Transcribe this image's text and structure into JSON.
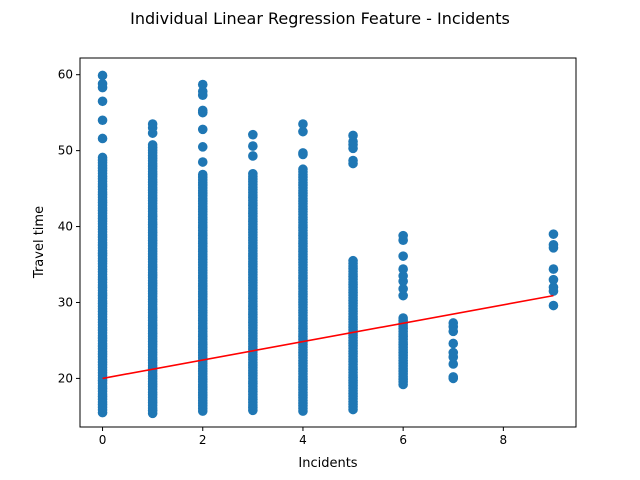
{
  "chart_data": {
    "type": "scatter",
    "title": "Individual Linear Regression Feature - Incidents",
    "xlabel": "Incidents",
    "ylabel": "Travel time",
    "xlim": [
      -0.45,
      9.45
    ],
    "ylim": [
      13.6,
      62.2
    ],
    "xticks": [
      0,
      2,
      4,
      6,
      8
    ],
    "yticks": [
      20,
      30,
      40,
      50,
      60
    ],
    "grid": false,
    "colors": {
      "points": "#1f77b4",
      "regression": "#ff0000"
    },
    "scatter_columns": [
      {
        "x": 0,
        "y_min": 15.5,
        "y_max": 49.3,
        "outliers": [
          51.6,
          54.0,
          56.5,
          58.3,
          58.8,
          59.9
        ]
      },
      {
        "x": 1,
        "y_min": 15.4,
        "y_max": 50.8,
        "outliers": [
          52.3,
          53.0,
          53.5
        ]
      },
      {
        "x": 2,
        "y_min": 15.7,
        "y_max": 47.0,
        "outliers": [
          48.5,
          50.5,
          52.8,
          55.0,
          55.3,
          57.3,
          57.8,
          58.7
        ]
      },
      {
        "x": 3,
        "y_min": 15.8,
        "y_max": 47.2,
        "outliers": [
          49.3,
          50.6,
          52.1
        ]
      },
      {
        "x": 4,
        "y_min": 15.7,
        "y_max": 47.6,
        "outliers": [
          49.5,
          49.7,
          52.5,
          53.5
        ]
      },
      {
        "x": 5,
        "y_min": 15.9,
        "y_max": 35.5,
        "outliers": [
          48.3,
          48.7,
          50.3,
          50.8,
          51.2,
          52.0
        ]
      },
      {
        "x": 6,
        "y_min": 19.2,
        "y_max": 28.0,
        "outliers": [
          30.9,
          31.8,
          32.8,
          33.5,
          34.4,
          36.1,
          38.2,
          38.8
        ]
      },
      {
        "x": 7,
        "y_min": 20.0,
        "y_max": 27.3,
        "outliers": []
      },
      {
        "x": 9,
        "y_min": 29.6,
        "y_max": 39.0,
        "outliers": []
      }
    ],
    "scatter_sparse_points": [
      {
        "x": 7,
        "y": 20.0
      },
      {
        "x": 7,
        "y": 20.2
      },
      {
        "x": 7,
        "y": 21.9
      },
      {
        "x": 7,
        "y": 22.8
      },
      {
        "x": 7,
        "y": 23.4
      },
      {
        "x": 7,
        "y": 24.6
      },
      {
        "x": 7,
        "y": 26.2
      },
      {
        "x": 7,
        "y": 26.8
      },
      {
        "x": 7,
        "y": 27.3
      },
      {
        "x": 9,
        "y": 29.6
      },
      {
        "x": 9,
        "y": 31.5
      },
      {
        "x": 9,
        "y": 32.0
      },
      {
        "x": 9,
        "y": 33.0
      },
      {
        "x": 9,
        "y": 34.4
      },
      {
        "x": 9,
        "y": 37.2
      },
      {
        "x": 9,
        "y": 37.6
      },
      {
        "x": 9,
        "y": 39.0
      }
    ],
    "regression_line": {
      "x": [
        0,
        9
      ],
      "y": [
        20.0,
        30.9
      ]
    }
  }
}
